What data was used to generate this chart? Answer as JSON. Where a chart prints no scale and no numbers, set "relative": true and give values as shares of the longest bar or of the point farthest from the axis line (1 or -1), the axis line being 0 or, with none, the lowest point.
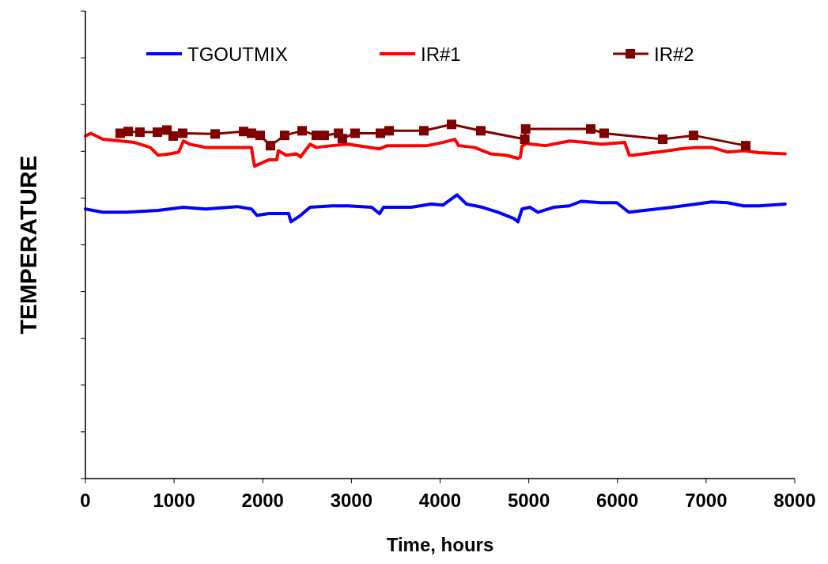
{
  "chart_data": {
    "type": "line",
    "relative": true,
    "xlabel": "Time, hours",
    "ylabel": "TEMPERATURE",
    "xlim": [
      0,
      8000
    ],
    "xticks": [
      0,
      1000,
      2000,
      3000,
      4000,
      5000,
      6000,
      7000,
      8000
    ],
    "legend": "top",
    "grid": false,
    "series": [
      {
        "name": "TGOUTMIX",
        "color": "#0000ff",
        "marker": "none",
        "x": [
          0,
          196,
          464,
          820,
          1106,
          1356,
          1712,
          1873,
          1935,
          2069,
          2292,
          2319,
          2426,
          2533,
          2783,
          2961,
          3228,
          3317,
          3362,
          3674,
          3897,
          4031,
          4191,
          4298,
          4477,
          4655,
          4834,
          4878,
          4923,
          5012,
          5102,
          5280,
          5458,
          5592,
          5815,
          5993,
          6127,
          6617,
          6884,
          7063,
          7241,
          7420,
          7598,
          7892
        ],
        "values": [
          0.761,
          0.752,
          0.752,
          0.757,
          0.766,
          0.761,
          0.768,
          0.761,
          0.743,
          0.748,
          0.748,
          0.725,
          0.743,
          0.766,
          0.77,
          0.77,
          0.766,
          0.748,
          0.766,
          0.766,
          0.775,
          0.772,
          0.801,
          0.775,
          0.766,
          0.752,
          0.734,
          0.725,
          0.761,
          0.766,
          0.752,
          0.766,
          0.77,
          0.783,
          0.779,
          0.779,
          0.752,
          0.766,
          0.775,
          0.781,
          0.779,
          0.77,
          0.77,
          0.775
        ]
      },
      {
        "name": "IR#1",
        "color": "#ff0000",
        "marker": "none",
        "x": [
          0,
          62,
          196,
          553,
          731,
          820,
          954,
          1052,
          1106,
          1177,
          1356,
          1712,
          1873,
          1891,
          1908,
          2069,
          2158,
          2176,
          2265,
          2381,
          2426,
          2533,
          2604,
          2783,
          2961,
          3317,
          3407,
          3674,
          3853,
          4031,
          4165,
          4209,
          4388,
          4566,
          4744,
          4878,
          4905,
          4923,
          4967,
          5190,
          5458,
          5636,
          5815,
          6082,
          6135,
          6171,
          6573,
          6706,
          6884,
          7063,
          7241,
          7420,
          7598,
          7892
        ],
        "values": [
          0.967,
          0.975,
          0.958,
          0.949,
          0.935,
          0.913,
          0.917,
          0.922,
          0.953,
          0.944,
          0.935,
          0.935,
          0.935,
          0.904,
          0.882,
          0.9,
          0.9,
          0.926,
          0.913,
          0.917,
          0.908,
          0.944,
          0.935,
          0.94,
          0.944,
          0.931,
          0.94,
          0.94,
          0.94,
          0.949,
          0.958,
          0.94,
          0.935,
          0.917,
          0.913,
          0.904,
          0.908,
          0.938,
          0.946,
          0.94,
          0.953,
          0.949,
          0.944,
          0.949,
          0.913,
          0.913,
          0.926,
          0.931,
          0.935,
          0.935,
          0.922,
          0.926,
          0.92,
          0.917
        ]
      },
      {
        "name": "IR#2",
        "color": "#800000",
        "marker": "square",
        "x": [
          392,
          482,
          615,
          812,
          919,
          990,
          1097,
          1463,
          1784,
          1873,
          1971,
          2087,
          2247,
          2444,
          2604,
          2693,
          2854,
          2898,
          3041,
          3327,
          3425,
          3817,
          4129,
          4459,
          4955,
          4965,
          5699,
          5850,
          6510,
          6858,
          7447
        ],
        "values": [
          0.975,
          0.98,
          0.978,
          0.978,
          0.984,
          0.967,
          0.975,
          0.973,
          0.98,
          0.975,
          0.969,
          0.94,
          0.969,
          0.982,
          0.969,
          0.969,
          0.975,
          0.96,
          0.975,
          0.975,
          0.982,
          0.982,
          1.0,
          0.982,
          0.958,
          0.987,
          0.987,
          0.975,
          0.958,
          0.969,
          0.94
        ]
      }
    ]
  }
}
